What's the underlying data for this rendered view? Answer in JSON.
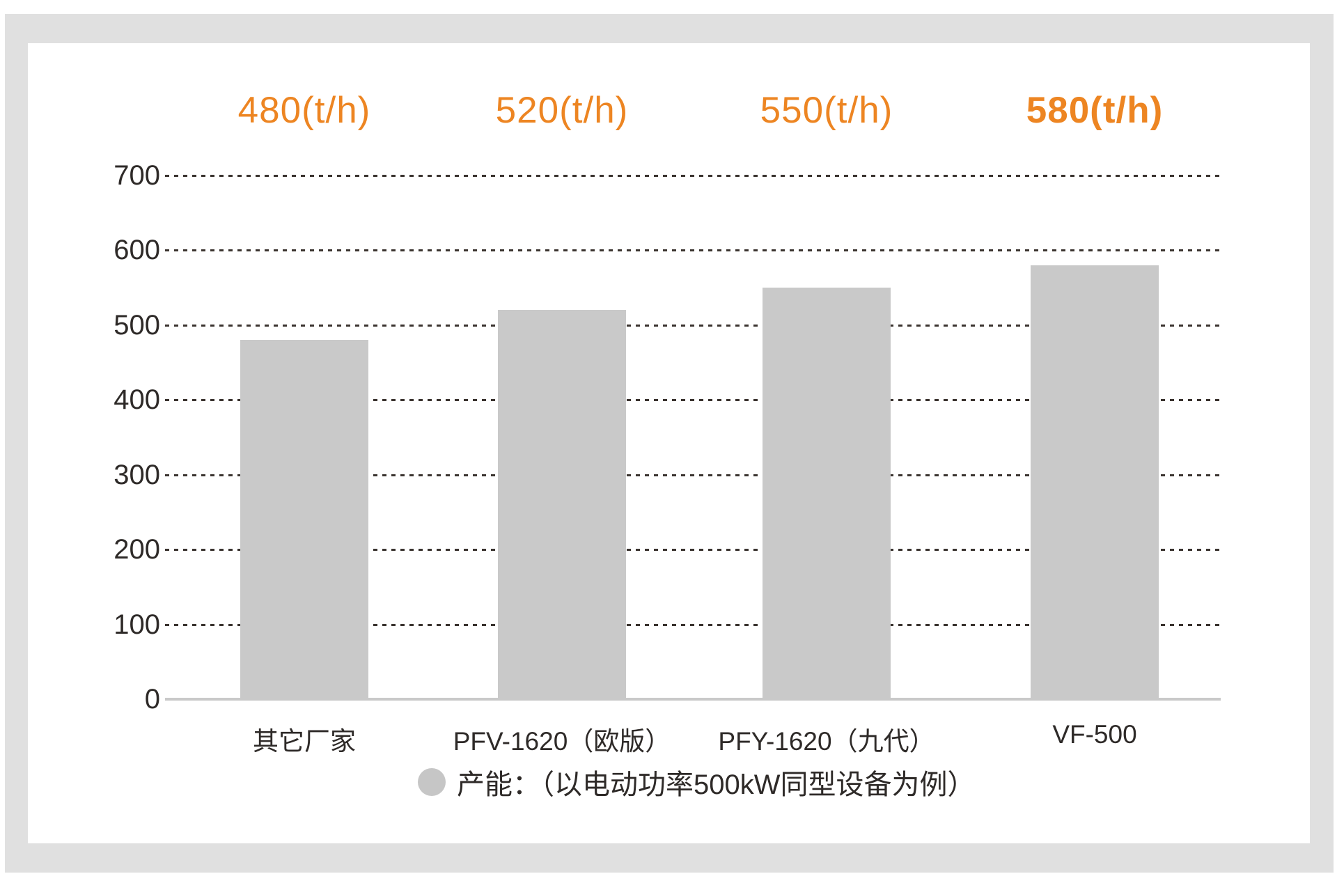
{
  "chart_data": {
    "type": "bar",
    "categories": [
      "其它厂家",
      "PFV-1620（欧版）",
      "PFY-1620（九代）",
      "VF-500"
    ],
    "values": [
      480,
      520,
      550,
      580
    ],
    "value_labels": [
      "480(t/h)",
      "520(t/h)",
      "550(t/h)",
      "580(t/h)"
    ],
    "highlight_index": 3,
    "title": "",
    "xlabel": "",
    "ylabel": "",
    "ylim": [
      0,
      700
    ],
    "y_ticks": [
      0,
      100,
      200,
      300,
      400,
      500,
      600,
      700
    ],
    "grid": "dotted-horizontal",
    "legend_position": "bottom",
    "legend": "产能：（以电动功率500kW同型设备为例）",
    "colors": {
      "bar": "#c9c9c9",
      "accent_orange": "#ed8522",
      "axis_line": "#c9c9c9",
      "grid_dots": "#3a332f",
      "text": "#2e2a28",
      "frame": "#e0e0e0",
      "card": "#ffffff",
      "legend_dot": "#c6c6c6"
    }
  }
}
